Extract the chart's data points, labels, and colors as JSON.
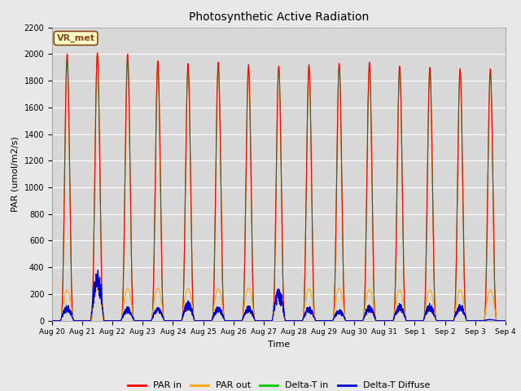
{
  "title": "Photosynthetic Active Radiation",
  "ylabel": "PAR (umol/m2/s)",
  "xlabel": "Time",
  "ylim": [
    0,
    2200
  ],
  "fig_bg_color": "#e8e8e8",
  "plot_bg_color": "#d8d8d8",
  "annotation_text": "VR_met",
  "annotation_bg": "#ffffcc",
  "annotation_border": "#8B4513",
  "legend": [
    "PAR in",
    "PAR out",
    "Delta-T in",
    "Delta-T Diffuse"
  ],
  "colors": {
    "PAR in": "#ff0000",
    "PAR out": "#ffa500",
    "Delta-T in": "#00cc00",
    "Delta-T Diffuse": "#0000cc"
  },
  "tick_labels": [
    "Aug 20",
    "Aug 21",
    "Aug 22",
    "Aug 23",
    "Aug 24",
    "Aug 25",
    "Aug 26",
    "Aug 27",
    "Aug 28",
    "Aug 29",
    "Aug 30",
    "Aug 31",
    "Sep 1",
    "Sep 2",
    "Sep 3",
    "Sep 4"
  ],
  "n_days": 15,
  "day_peaks": {
    "par_in": [
      2000,
      2010,
      2000,
      1950,
      1930,
      1940,
      1920,
      1910,
      1920,
      1930,
      1940,
      1910,
      1900,
      1890,
      1890
    ],
    "par_out": [
      230,
      235,
      240,
      245,
      240,
      240,
      245,
      240,
      240,
      245,
      235,
      230,
      230,
      230,
      230
    ],
    "delta_in": [
      1950,
      1980,
      1950,
      1900,
      1890,
      1900,
      1880,
      1900,
      1900,
      1910,
      1910,
      1900,
      1890,
      1870,
      1860
    ],
    "delta_dif": [
      120,
      400,
      105,
      105,
      150,
      110,
      115,
      250,
      110,
      85,
      120,
      130,
      130,
      130,
      10
    ]
  },
  "yticks": [
    0,
    200,
    400,
    600,
    800,
    1000,
    1200,
    1400,
    1600,
    1800,
    2000,
    2200
  ]
}
